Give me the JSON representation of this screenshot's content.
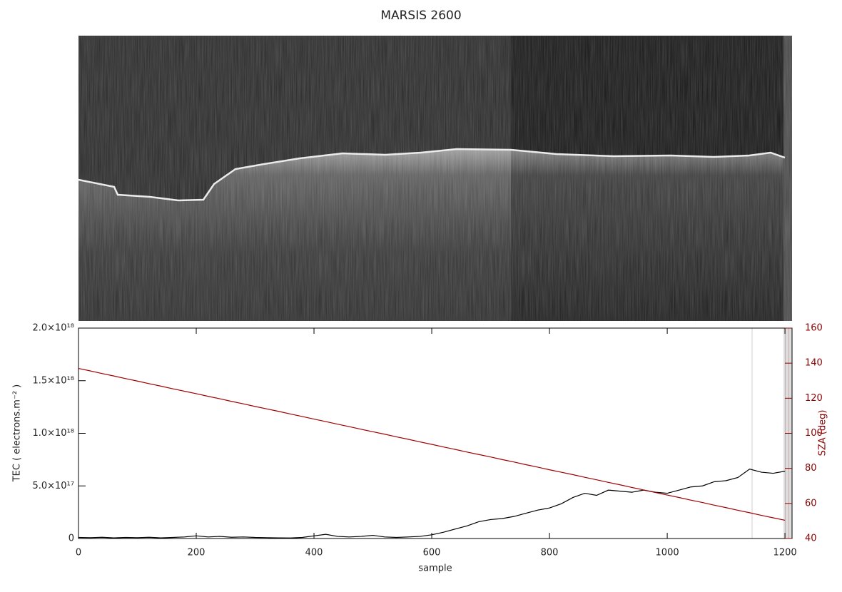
{
  "chart_data": {
    "type": "line",
    "title": "MARSIS 2600",
    "xlabel": "sample",
    "ylabel": "TEC ( electrons.m⁻² )",
    "y2label": "SZA (deg)",
    "xlim": [
      0,
      1212
    ],
    "xticks": [
      0,
      200,
      400,
      600,
      800,
      1000,
      1200
    ],
    "ylim": [
      0,
      2e+18
    ],
    "yticks": [
      0,
      {
        "value": 5e+17,
        "label": "5.0×10¹⁷"
      },
      {
        "value": 1e+18,
        "label": "1.0×10¹⁸"
      },
      {
        "value": 1.5e+18,
        "label": "1.5×10¹⁸"
      },
      {
        "value": 2e+18,
        "label": "2.0×10¹⁸"
      }
    ],
    "y2lim": [
      40,
      160
    ],
    "y2ticks": [
      40,
      60,
      80,
      100,
      120,
      140,
      160
    ],
    "x": [
      0,
      20,
      40,
      60,
      80,
      100,
      120,
      140,
      160,
      180,
      200,
      220,
      240,
      260,
      280,
      300,
      320,
      340,
      360,
      380,
      400,
      420,
      440,
      460,
      480,
      500,
      520,
      540,
      560,
      580,
      600,
      620,
      640,
      660,
      680,
      700,
      720,
      740,
      760,
      780,
      800,
      820,
      840,
      860,
      880,
      900,
      920,
      940,
      960,
      980,
      1000,
      1020,
      1040,
      1060,
      1080,
      1100,
      1120,
      1140,
      1160,
      1180,
      1200
    ],
    "series": [
      {
        "color": "#000000",
        "values": [
          1e+16,
          8000000000000000.0,
          1.2e+16,
          6000000000000000.0,
          1e+16,
          8000000000000000.0,
          1.2e+16,
          6000000000000000.0,
          1e+16,
          1.5e+16,
          2.5e+16,
          1.5e+16,
          2e+16,
          1.2e+16,
          1.5e+16,
          1e+16,
          8000000000000000.0,
          6000000000000000.0,
          5000000000000000.0,
          1e+16,
          2.5e+16,
          4e+16,
          2e+16,
          1.5e+16,
          2e+16,
          3e+16,
          1.5e+16,
          1e+16,
          1.5e+16,
          2e+16,
          3.5e+16,
          6e+16,
          9e+16,
          1.2e+17,
          1.6e+17,
          1.8e+17,
          1.9e+17,
          2.1e+17,
          2.4e+17,
          2.7e+17,
          2.9e+17,
          3.3e+17,
          3.9e+17,
          4.3e+17,
          4.1e+17,
          4.6e+17,
          4.5e+17,
          4.4e+17,
          4.6e+17,
          4.4e+17,
          4.3e+17,
          4.6e+17,
          4.9e+17,
          5e+17,
          5.4e+17,
          5.5e+17,
          5.8e+17,
          6.6e+17,
          6.3e+17,
          6.2e+17,
          6.4e+17
        ]
      },
      {
        "color": "#a00000",
        "axis": "y2",
        "values": [
          137.0,
          135.6,
          134.1,
          132.7,
          131.2,
          129.8,
          128.3,
          126.9,
          125.4,
          124.0,
          122.6,
          121.1,
          119.7,
          118.2,
          116.8,
          115.3,
          113.9,
          112.5,
          111.0,
          109.6,
          108.1,
          106.7,
          105.2,
          103.8,
          102.3,
          100.9,
          99.5,
          98.0,
          96.6,
          95.1,
          93.7,
          92.2,
          90.8,
          89.3,
          87.9,
          86.5,
          85.0,
          83.6,
          82.1,
          80.7,
          79.2,
          77.8,
          76.4,
          74.9,
          73.5,
          72.0,
          70.6,
          69.1,
          67.7,
          66.2,
          64.8,
          63.4,
          61.9,
          60.5,
          59.0,
          57.6,
          56.1,
          54.7,
          53.2,
          51.8,
          50.4
        ]
      }
    ]
  }
}
